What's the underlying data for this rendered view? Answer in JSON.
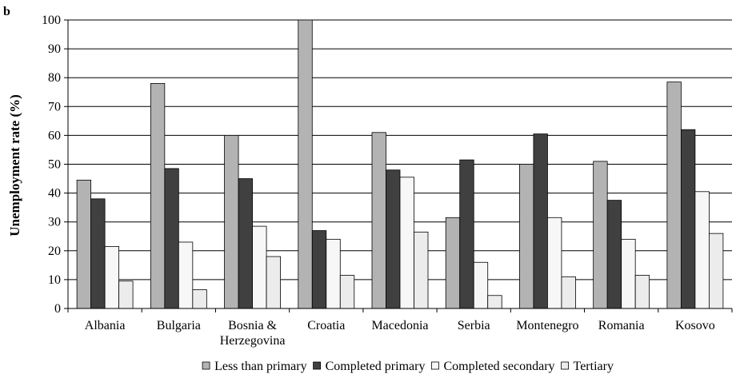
{
  "panel_label": "b",
  "chart_data": {
    "type": "bar",
    "ylabel": "Unemployment rate (%)",
    "xlabel": "",
    "ylim": [
      0,
      100
    ],
    "yticks": [
      0,
      10,
      20,
      30,
      40,
      50,
      60,
      70,
      80,
      90,
      100
    ],
    "grid": true,
    "legend_position": "bottom",
    "categories": [
      "Albania",
      "Bulgaria",
      "Bosnia & Herzegovina",
      "Croatia",
      "Macedonia",
      "Serbia",
      "Montenegro",
      "Romania",
      "Kosovo"
    ],
    "category_label_lines": [
      [
        "Albania"
      ],
      [
        "Bulgaria"
      ],
      [
        "Bosnia &",
        "Herzegovina"
      ],
      [
        "Croatia"
      ],
      [
        "Macedonia"
      ],
      [
        "Serbia"
      ],
      [
        "Montenegro"
      ],
      [
        "Romania"
      ],
      [
        "Kosovo"
      ]
    ],
    "series": [
      {
        "name": "Less than primary",
        "color": "#b3b3b3",
        "values": [
          44.5,
          78,
          60,
          100,
          61,
          31.5,
          50,
          51,
          78.5
        ]
      },
      {
        "name": "Completed primary",
        "color": "#404040",
        "values": [
          38,
          48.5,
          45,
          27,
          48,
          51.5,
          60.5,
          37.5,
          62
        ]
      },
      {
        "name": "Completed secondary",
        "color": "#f7f7f7",
        "values": [
          21.5,
          23,
          28.5,
          24,
          45.5,
          16,
          31.5,
          24,
          40.5
        ]
      },
      {
        "name": "Tertiary",
        "color": "#ececec",
        "values": [
          9.5,
          6.5,
          18,
          11.5,
          26.5,
          4.5,
          11,
          11.5,
          26
        ]
      }
    ]
  }
}
